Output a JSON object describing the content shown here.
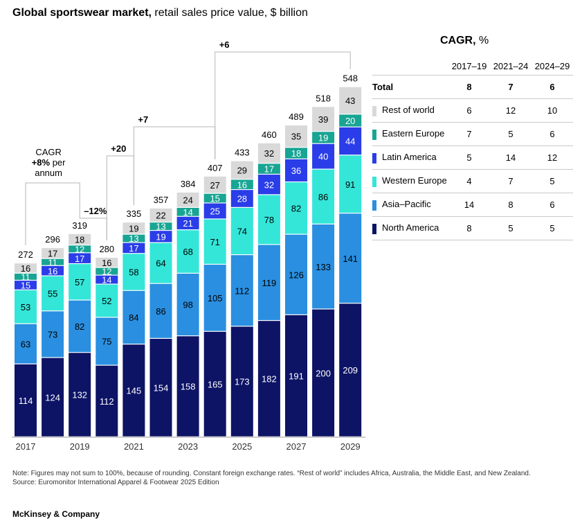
{
  "title": {
    "bold": "Global sportswear market,",
    "rest": "retail sales price value, $ billion"
  },
  "chart_data": {
    "type": "bar",
    "stacked": true,
    "categories": [
      "2017",
      "2018",
      "2019",
      "2020",
      "2021",
      "2022",
      "2023",
      "2024",
      "2025",
      "2026",
      "2027",
      "2028",
      "2029"
    ],
    "x_tick_labels": [
      "2017",
      "",
      "2019",
      "",
      "2021",
      "",
      "2023",
      "",
      "2025",
      "",
      "2027",
      "",
      "2029"
    ],
    "series": [
      {
        "name": "North America",
        "color": "#0d1365",
        "label_color": "#ffffff",
        "values": [
          114,
          124,
          132,
          112,
          145,
          154,
          158,
          165,
          173,
          182,
          191,
          200,
          209
        ]
      },
      {
        "name": "Asia–Pacific",
        "color": "#2a8fe0",
        "label_color": "#000000",
        "values": [
          63,
          73,
          82,
          75,
          84,
          86,
          98,
          105,
          112,
          119,
          126,
          133,
          141
        ]
      },
      {
        "name": "Western Europe",
        "color": "#33e6d8",
        "label_color": "#000000",
        "values": [
          53,
          55,
          57,
          52,
          58,
          64,
          68,
          71,
          74,
          78,
          82,
          86,
          91
        ]
      },
      {
        "name": "Latin America",
        "color": "#2a3de8",
        "label_color": "#ffffff",
        "values": [
          15,
          16,
          17,
          14,
          17,
          19,
          21,
          25,
          28,
          32,
          36,
          40,
          44
        ]
      },
      {
        "name": "Eastern Europe",
        "color": "#18a593",
        "label_color": "#ffffff",
        "values": [
          11,
          11,
          12,
          12,
          13,
          13,
          14,
          15,
          16,
          17,
          18,
          19,
          20
        ]
      },
      {
        "name": "Rest of world",
        "color": "#d9d9d9",
        "label_color": "#000000",
        "values": [
          16,
          17,
          18,
          16,
          19,
          22,
          24,
          27,
          29,
          32,
          35,
          39,
          43
        ]
      }
    ],
    "totals": [
      272,
      296,
      319,
      280,
      335,
      357,
      384,
      407,
      433,
      460,
      489,
      518,
      548
    ],
    "ylim": [
      0,
      560
    ],
    "annotations": [
      {
        "text_lines": [
          "CAGR",
          "+8% per",
          "annum"
        ],
        "bold_fragment": "+8%",
        "from": "2017",
        "to": "2019"
      },
      {
        "text": "–12%",
        "from": "2019",
        "to": "2020"
      },
      {
        "text": "+20",
        "from": "2020",
        "to": "2021"
      },
      {
        "text": "+7",
        "from": "2021",
        "to": "2024"
      },
      {
        "text": "+6",
        "from": "2024",
        "to": "2029"
      }
    ]
  },
  "cagr_table": {
    "heading_bold": "CAGR,",
    "heading_rest": "%",
    "columns": [
      "2017–19",
      "2021–24",
      "2024–29"
    ],
    "rows": [
      {
        "label": "Total",
        "values": [
          "8",
          "7",
          "6"
        ],
        "bold": true
      },
      {
        "label": "Rest of world",
        "values": [
          "6",
          "12",
          "10"
        ],
        "color": "#d9d9d9"
      },
      {
        "label": "Eastern Europe",
        "values": [
          "7",
          "5",
          "6"
        ],
        "color": "#18a593"
      },
      {
        "label": "Latin America",
        "values": [
          "5",
          "14",
          "12"
        ],
        "color": "#2a3de8"
      },
      {
        "label": "Western Europe",
        "values": [
          "4",
          "7",
          "5"
        ],
        "color": "#33e6d8"
      },
      {
        "label": "Asia–Pacific",
        "values": [
          "14",
          "8",
          "6"
        ],
        "color": "#2a8fe0"
      },
      {
        "label": "North America",
        "values": [
          "8",
          "5",
          "5"
        ],
        "color": "#0d1365"
      }
    ]
  },
  "footnote": {
    "note": "Note: Figures may not sum to 100%, because of rounding. Constant foreign exchange rates. “Rest of world” includes Africa, Australia, the Middle East, and New Zealand.",
    "source": "Source: Euromonitor International Apparel & Footwear 2025 Edition"
  },
  "brand": "McKinsey & Company"
}
